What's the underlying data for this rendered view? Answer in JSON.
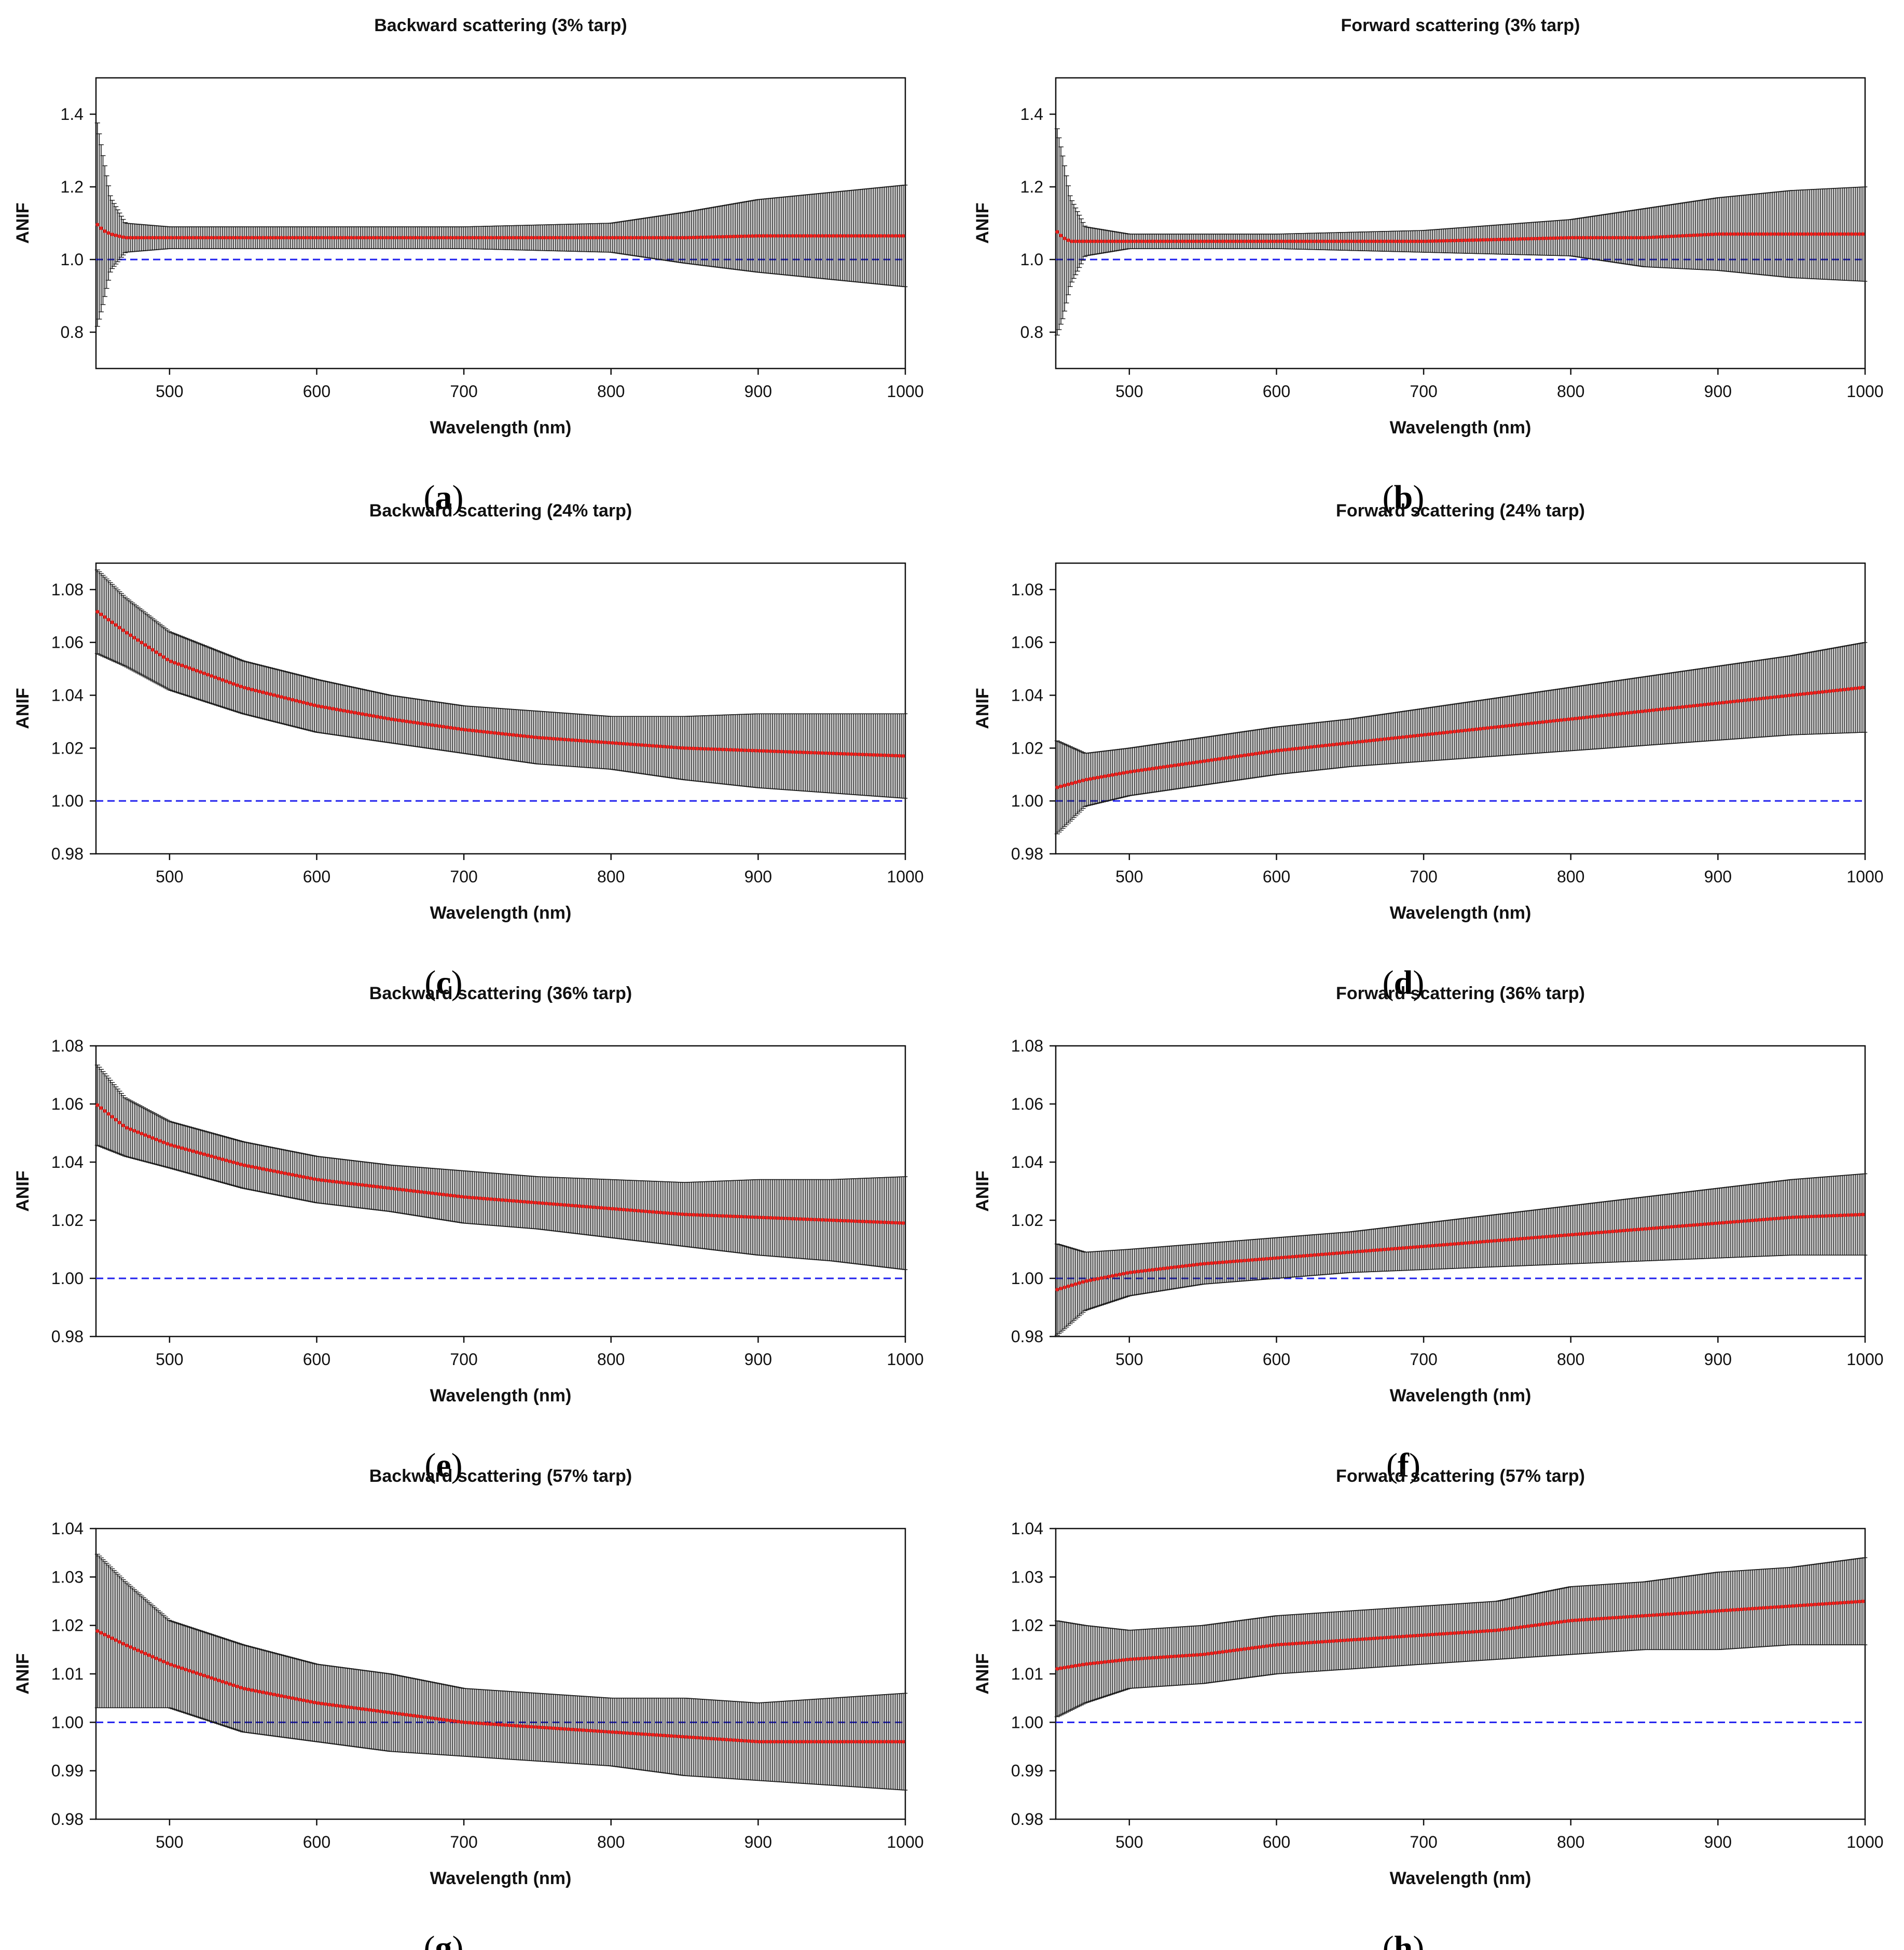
{
  "figure": {
    "colors": {
      "data_marker": "#e8201c",
      "error_bar": "#1a1a1a",
      "reference_line": "#2020ee",
      "axis": "#111111"
    },
    "reference_value": 1.0,
    "chart_data": [
      {
        "id": "a",
        "type": "scatter",
        "title": "Backward scattering (3% tarp)",
        "caption_letter": "a",
        "xlabel": "Wavelength (nm)",
        "ylabel": "ANIF",
        "xlim": [
          450,
          1000
        ],
        "ylim": [
          0.7,
          1.5
        ],
        "xticks": [
          500,
          600,
          700,
          800,
          900,
          1000
        ],
        "yticks": [
          "0.8",
          "1.0",
          "1.2",
          "1.4"
        ],
        "series": [
          {
            "name": "ANIF mean",
            "x": [
              450,
              455,
              460,
              470,
              500,
              600,
              700,
              800,
              850,
              900,
              950,
              1000
            ],
            "y": [
              1.1,
              1.08,
              1.07,
              1.06,
              1.06,
              1.06,
              1.06,
              1.06,
              1.06,
              1.065,
              1.065,
              1.065
            ],
            "error": [
              0.3,
              0.2,
              0.1,
              0.04,
              0.03,
              0.03,
              0.03,
              0.04,
              0.07,
              0.1,
              0.12,
              0.14
            ]
          }
        ]
      },
      {
        "id": "b",
        "type": "scatter",
        "title": "Forward scattering (3% tarp)",
        "caption_letter": "b",
        "xlabel": "Wavelength (nm)",
        "ylabel": "ANIF",
        "xlim": [
          450,
          1000
        ],
        "ylim": [
          0.7,
          1.5
        ],
        "xticks": [
          500,
          600,
          700,
          800,
          900,
          1000
        ],
        "yticks": [
          "0.8",
          "1.0",
          "1.2",
          "1.4"
        ],
        "series": [
          {
            "name": "ANIF mean",
            "x": [
              450,
              455,
              460,
              470,
              500,
              600,
              700,
              800,
              850,
              900,
              950,
              1000
            ],
            "y": [
              1.08,
              1.06,
              1.05,
              1.05,
              1.05,
              1.05,
              1.05,
              1.06,
              1.06,
              1.07,
              1.07,
              1.07
            ],
            "error": [
              0.3,
              0.22,
              0.12,
              0.04,
              0.02,
              0.02,
              0.03,
              0.05,
              0.08,
              0.1,
              0.12,
              0.13
            ]
          }
        ]
      },
      {
        "id": "c",
        "type": "scatter",
        "title": "Backward scattering (24% tarp)",
        "caption_letter": "c",
        "xlabel": "Wavelength (nm)",
        "ylabel": "ANIF",
        "xlim": [
          450,
          1000
        ],
        "ylim": [
          0.98,
          1.09
        ],
        "xticks": [
          500,
          600,
          700,
          800,
          900,
          1000
        ],
        "yticks": [
          "0.98",
          "1.00",
          "1.02",
          "1.04",
          "1.06",
          "1.08"
        ],
        "series": [
          {
            "name": "ANIF mean",
            "x": [
              450,
              470,
              500,
              550,
              600,
              650,
              700,
              750,
              800,
              850,
              900,
              950,
              1000
            ],
            "y": [
              1.072,
              1.064,
              1.053,
              1.043,
              1.036,
              1.031,
              1.027,
              1.024,
              1.022,
              1.02,
              1.019,
              1.018,
              1.017
            ],
            "error": [
              0.016,
              0.013,
              0.011,
              0.01,
              0.01,
              0.009,
              0.009,
              0.01,
              0.01,
              0.012,
              0.014,
              0.015,
              0.016
            ]
          }
        ]
      },
      {
        "id": "d",
        "type": "scatter",
        "title": "Forward scattering (24% tarp)",
        "caption_letter": "d",
        "xlabel": "Wavelength (nm)",
        "ylabel": "ANIF",
        "xlim": [
          450,
          1000
        ],
        "ylim": [
          0.98,
          1.09
        ],
        "xticks": [
          500,
          600,
          700,
          800,
          900,
          1000
        ],
        "yticks": [
          "0.98",
          "1.00",
          "1.02",
          "1.04",
          "1.06",
          "1.08"
        ],
        "series": [
          {
            "name": "ANIF mean",
            "x": [
              450,
              470,
              500,
              550,
              600,
              650,
              700,
              750,
              800,
              850,
              900,
              950,
              1000
            ],
            "y": [
              1.005,
              1.008,
              1.011,
              1.015,
              1.019,
              1.022,
              1.025,
              1.028,
              1.031,
              1.034,
              1.037,
              1.04,
              1.043
            ],
            "error": [
              0.018,
              0.01,
              0.009,
              0.009,
              0.009,
              0.009,
              0.01,
              0.011,
              0.012,
              0.013,
              0.014,
              0.015,
              0.017
            ]
          }
        ]
      },
      {
        "id": "e",
        "type": "scatter",
        "title": "Backward scattering (36% tarp)",
        "caption_letter": "e",
        "xlabel": "Wavelength (nm)",
        "ylabel": "ANIF",
        "xlim": [
          450,
          1000
        ],
        "ylim": [
          0.98,
          1.08
        ],
        "xticks": [
          500,
          600,
          700,
          800,
          900,
          1000
        ],
        "yticks": [
          "0.98",
          "1.00",
          "1.02",
          "1.04",
          "1.06",
          "1.08"
        ],
        "series": [
          {
            "name": "ANIF mean",
            "x": [
              450,
              470,
              500,
              550,
              600,
              650,
              700,
              750,
              800,
              850,
              900,
              950,
              1000
            ],
            "y": [
              1.06,
              1.052,
              1.046,
              1.039,
              1.034,
              1.031,
              1.028,
              1.026,
              1.024,
              1.022,
              1.021,
              1.02,
              1.019
            ],
            "error": [
              0.014,
              0.01,
              0.008,
              0.008,
              0.008,
              0.008,
              0.009,
              0.009,
              0.01,
              0.011,
              0.013,
              0.014,
              0.016
            ]
          }
        ]
      },
      {
        "id": "f",
        "type": "scatter",
        "title": "Forward scattering (36% tarp)",
        "caption_letter": "f",
        "xlabel": "Wavelength (nm)",
        "ylabel": "ANIF",
        "xlim": [
          450,
          1000
        ],
        "ylim": [
          0.98,
          1.08
        ],
        "xticks": [
          500,
          600,
          700,
          800,
          900,
          1000
        ],
        "yticks": [
          "0.98",
          "1.00",
          "1.02",
          "1.04",
          "1.06",
          "1.08"
        ],
        "series": [
          {
            "name": "ANIF mean",
            "x": [
              450,
              470,
              500,
              550,
              600,
              650,
              700,
              750,
              800,
              850,
              900,
              950,
              1000
            ],
            "y": [
              0.996,
              0.999,
              1.002,
              1.005,
              1.007,
              1.009,
              1.011,
              1.013,
              1.015,
              1.017,
              1.019,
              1.021,
              1.022
            ],
            "error": [
              0.016,
              0.01,
              0.008,
              0.007,
              0.007,
              0.007,
              0.008,
              0.009,
              0.01,
              0.011,
              0.012,
              0.013,
              0.014
            ]
          }
        ]
      },
      {
        "id": "g",
        "type": "scatter",
        "title": "Backward scattering (57% tarp)",
        "caption_letter": "g",
        "xlabel": "Wavelength (nm)",
        "ylabel": "ANIF",
        "xlim": [
          450,
          1000
        ],
        "ylim": [
          0.98,
          1.04
        ],
        "xticks": [
          500,
          600,
          700,
          800,
          900,
          1000
        ],
        "yticks": [
          "0.98",
          "0.99",
          "1.00",
          "1.01",
          "1.02",
          "1.03",
          "1.04"
        ],
        "series": [
          {
            "name": "ANIF mean",
            "x": [
              450,
              470,
              500,
              550,
              600,
              650,
              700,
              750,
              800,
              850,
              900,
              950,
              1000
            ],
            "y": [
              1.019,
              1.016,
              1.012,
              1.007,
              1.004,
              1.002,
              1.0,
              0.999,
              0.998,
              0.997,
              0.996,
              0.996,
              0.996
            ],
            "error": [
              0.016,
              0.013,
              0.009,
              0.009,
              0.008,
              0.008,
              0.007,
              0.007,
              0.007,
              0.008,
              0.008,
              0.009,
              0.01
            ]
          }
        ]
      },
      {
        "id": "h",
        "type": "scatter",
        "title": "Forward scattering (57% tarp)",
        "caption_letter": "h",
        "xlabel": "Wavelength (nm)",
        "ylabel": "ANIF",
        "xlim": [
          450,
          1000
        ],
        "ylim": [
          0.98,
          1.04
        ],
        "xticks": [
          500,
          600,
          700,
          800,
          900,
          1000
        ],
        "yticks": [
          "0.98",
          "0.99",
          "1.00",
          "1.01",
          "1.02",
          "1.03",
          "1.04"
        ],
        "series": [
          {
            "name": "ANIF mean",
            "x": [
              450,
              470,
              500,
              550,
              600,
              650,
              700,
              750,
              800,
              850,
              900,
              950,
              1000
            ],
            "y": [
              1.011,
              1.012,
              1.013,
              1.014,
              1.016,
              1.017,
              1.018,
              1.019,
              1.021,
              1.022,
              1.023,
              1.024,
              1.025
            ],
            "error": [
              0.01,
              0.008,
              0.006,
              0.006,
              0.006,
              0.006,
              0.006,
              0.006,
              0.007,
              0.007,
              0.008,
              0.008,
              0.009
            ]
          }
        ]
      }
    ]
  }
}
